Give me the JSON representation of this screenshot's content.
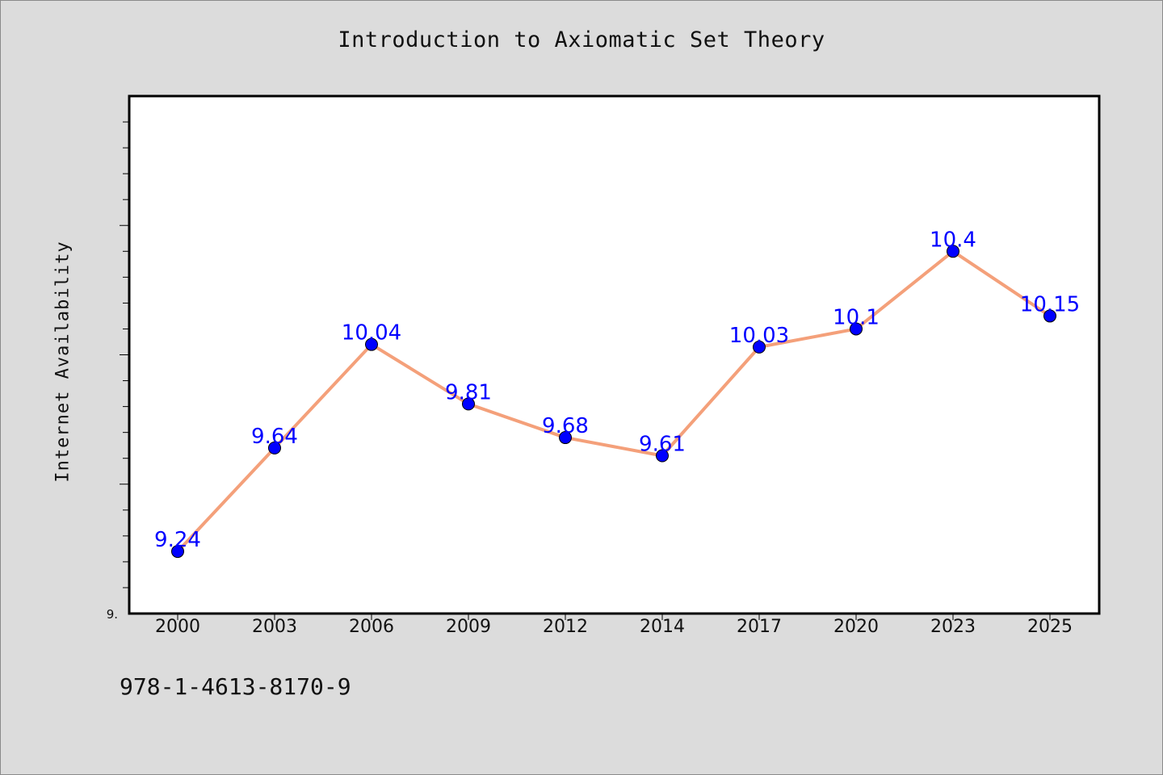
{
  "chart_data": {
    "type": "line",
    "title": "Introduction to Axiomatic Set Theory",
    "xlabel": "",
    "ylabel": "Internet Availability",
    "categories": [
      "2000",
      "2003",
      "2006",
      "2009",
      "2012",
      "2014",
      "2017",
      "2020",
      "2023",
      "2025"
    ],
    "series": [
      {
        "values": [
          9.24,
          9.64,
          10.04,
          9.81,
          9.68,
          9.61,
          10.03,
          10.1,
          10.4,
          10.15
        ]
      }
    ],
    "data_labels": [
      "9.24",
      "9.64",
      "10.04",
      "9.81",
      "9.68",
      "9.61",
      "10.03",
      "10.1",
      "10.4",
      "10.15"
    ],
    "ylim": [
      9.0,
      11.0
    ],
    "y_min_label": "9.",
    "grid": false,
    "line_color": "#f4a07a",
    "marker_color": "#0000ff",
    "label_color": "#0000ff"
  },
  "footer": {
    "isbn": "978-1-4613-8170-9"
  }
}
